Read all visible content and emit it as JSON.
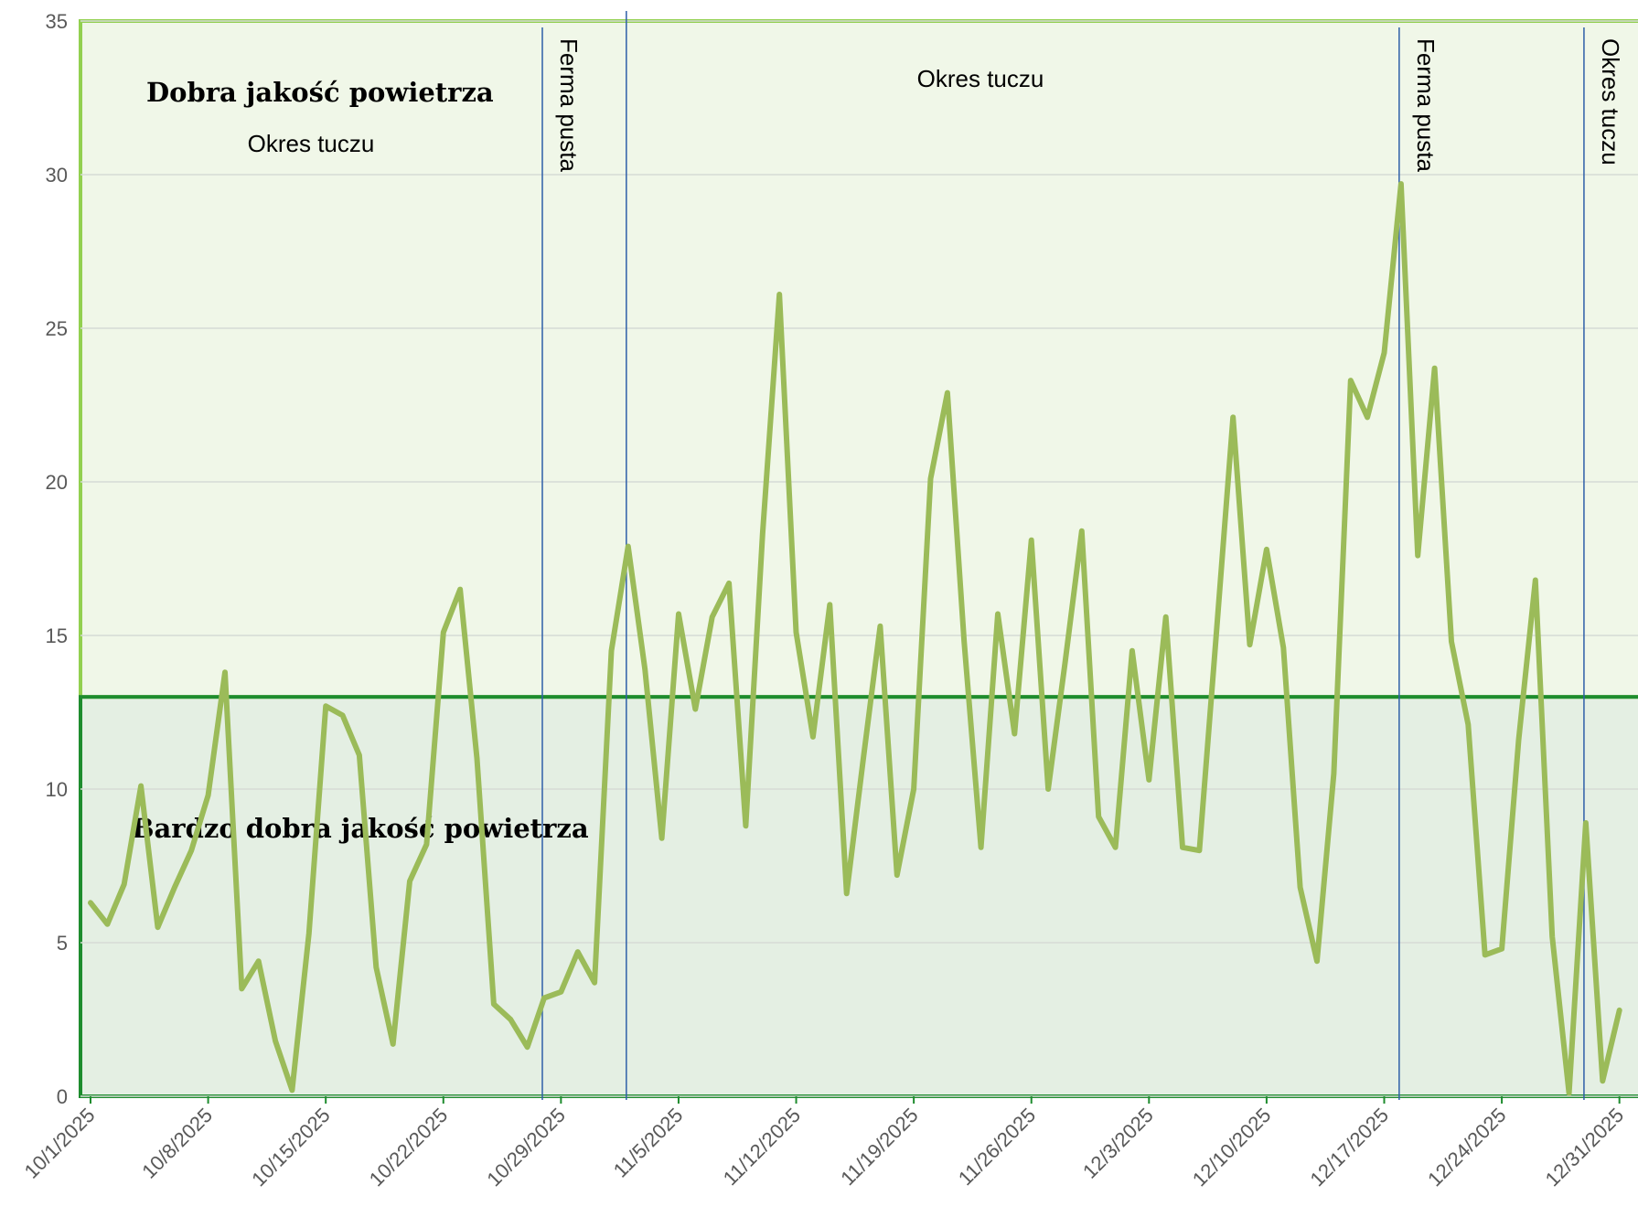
{
  "chart_data": {
    "type": "line",
    "ylim": [
      0,
      35
    ],
    "yticks": [
      0,
      5,
      10,
      15,
      20,
      25,
      30,
      35
    ],
    "xticks": [
      "10/1/2025",
      "10/8/2025",
      "10/15/2025",
      "10/22/2025",
      "10/29/2025",
      "11/5/2025",
      "11/12/2025",
      "11/19/2025",
      "11/26/2025",
      "12/3/2025",
      "12/10/2025",
      "12/17/2025",
      "12/24/2025",
      "12/31/2025"
    ],
    "x_start": "10/1/2025",
    "x_end": "12/31/2025",
    "grid": true,
    "line_color": "#9bbb59",
    "series": [
      {
        "values": [
          6.3,
          5.6,
          6.9,
          10.1,
          5.5,
          6.8,
          8.0,
          9.8,
          13.8,
          3.5,
          4.4,
          1.8,
          0.2,
          5.3,
          12.7,
          12.4,
          11.1,
          4.2,
          1.7,
          7.0,
          8.2,
          15.1,
          16.5,
          11.0,
          3.0,
          2.5,
          1.6,
          3.2,
          3.4,
          4.7,
          3.7,
          14.5,
          17.9,
          13.9,
          8.4,
          15.7,
          12.6,
          15.6,
          16.7,
          8.8,
          18.3,
          26.1,
          15.1,
          11.7,
          16.0,
          6.6,
          11.0,
          15.3,
          7.2,
          10.0,
          20.1,
          22.9,
          14.8,
          8.1,
          15.7,
          11.8,
          18.1,
          10.0,
          14.1,
          18.4,
          9.1,
          8.1,
          14.5,
          10.3,
          15.6,
          8.1,
          8.0,
          15.0,
          22.1,
          14.7,
          17.8,
          14.6,
          6.8,
          4.4,
          10.5,
          23.3,
          22.1,
          24.2,
          29.7,
          17.6,
          23.7,
          14.8,
          12.1,
          4.6,
          4.8,
          11.6,
          16.8,
          5.2,
          0.1,
          8.9,
          0.5,
          2.8
        ]
      }
    ],
    "zones": [
      {
        "label": "Dobra jakość powietrza",
        "from": 13,
        "to": 35,
        "fill": "#f0f7e8",
        "border": "#92d050"
      },
      {
        "label": "Bardzo dobra jakość powietrza",
        "from": 0,
        "to": 13,
        "fill": "#e4efe3",
        "border": "#1e8c2e"
      }
    ],
    "periods": [
      {
        "label": "Okres tuczu",
        "from": "10/1/2025",
        "to": "10/28/2025",
        "orientation": "horizontal"
      },
      {
        "label": "Ferma pusta",
        "from": "10/28/2025",
        "to": "11/2/2025",
        "orientation": "vertical"
      },
      {
        "label": "Okres tuczu",
        "from": "11/2/2025",
        "to": "12/18/2025",
        "orientation": "horizontal"
      },
      {
        "label": "Ferma pusta",
        "from": "12/18/2025",
        "to": "12/29/2025",
        "orientation": "vertical"
      },
      {
        "label": "Okres tuczu",
        "from": "12/29/2025",
        "to": "12/31/2025",
        "orientation": "vertical"
      }
    ],
    "period_divider_color": "#2e5fa8"
  }
}
